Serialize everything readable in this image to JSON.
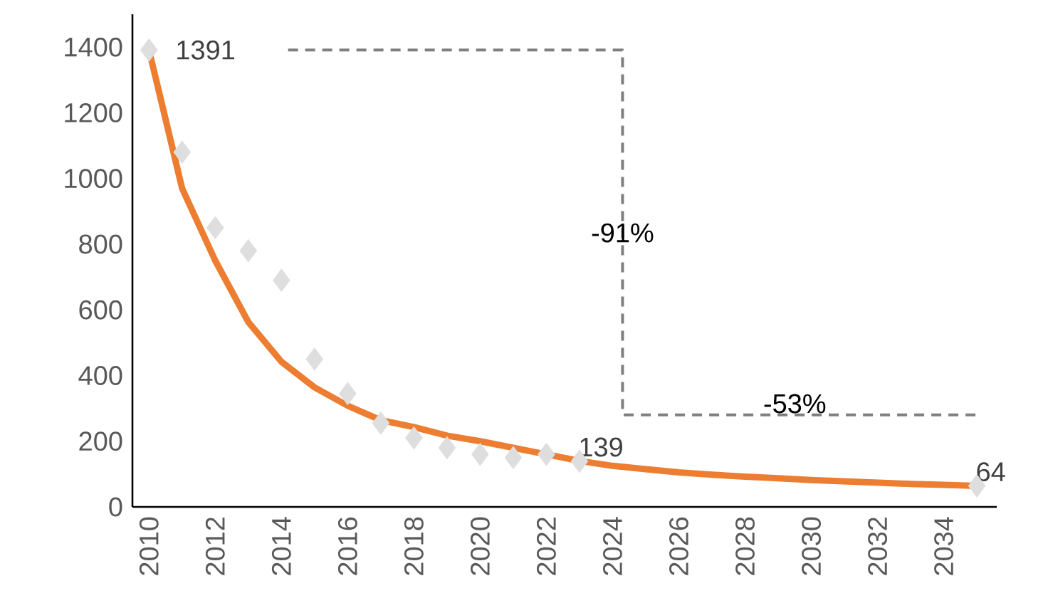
{
  "chart_data": {
    "type": "line",
    "x": [
      2010,
      2011,
      2012,
      2013,
      2014,
      2015,
      2016,
      2017,
      2018,
      2019,
      2020,
      2021,
      2022,
      2023,
      2024,
      2025,
      2026,
      2027,
      2028,
      2029,
      2030,
      2031,
      2032,
      2033,
      2034,
      2035
    ],
    "series": [
      {
        "color": "#ed7d31",
        "line_style": "solid",
        "marker": "none",
        "values": [
          1391,
          970,
          750,
          563,
          442,
          364,
          308,
          264,
          243,
          217,
          200,
          180,
          160,
          140,
          125,
          115,
          105,
          98,
          92,
          87,
          82,
          78,
          74,
          70,
          67,
          64
        ]
      },
      {
        "type": "scatter",
        "color": "#dedede",
        "marker": "diamond",
        "x": [
          2010,
          2011,
          2012,
          2013,
          2014,
          2015,
          2016,
          2017,
          2018,
          2019,
          2020,
          2021,
          2022,
          2023,
          2035
        ],
        "values": [
          1391,
          1080,
          850,
          780,
          690,
          450,
          345,
          255,
          210,
          180,
          160,
          150,
          160,
          139,
          64
        ],
        "value_labels": [
          "1391",
          null,
          null,
          null,
          null,
          null,
          null,
          null,
          null,
          null,
          null,
          null,
          null,
          "139",
          "64"
        ]
      },
      {
        "type": "line",
        "color": "#7f7f7f",
        "line_style": "dashed",
        "marker": "none",
        "x": [
          2014.2,
          2024.3,
          2024.3,
          2035
        ],
        "values": [
          1391,
          1391,
          280,
          280
        ]
      }
    ],
    "annotations": [
      {
        "text": "-91%",
        "x": 2024.3,
        "y": 800
      },
      {
        "text": "-53%",
        "x": 2029.5,
        "y": 280
      }
    ],
    "xlim": [
      2009.5,
      2035.6
    ],
    "ylim": [
      0,
      1500
    ],
    "xticks": [
      2010,
      2012,
      2014,
      2016,
      2018,
      2020,
      2022,
      2024,
      2026,
      2028,
      2030,
      2032,
      2034
    ],
    "yticks": [
      0,
      200,
      400,
      600,
      800,
      1000,
      1200,
      1400
    ],
    "grid": false
  }
}
